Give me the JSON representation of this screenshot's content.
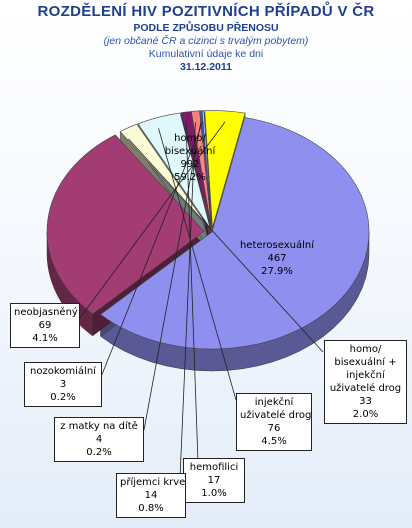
{
  "titles": {
    "main": "ROZDĚLENÍ HIV POZITIVNÍCH PŘÍPADŮ V ČR",
    "sub1": "PODLE ZPŮSOBU PŘENOSU",
    "sub2": "(jen občané ČR a cizinci s trvalým pobytem)",
    "sub3": "Kumulativní údaje ke dni",
    "date": "31.12.2011"
  },
  "chart_data": {
    "type": "pie",
    "style": "3d-exploded",
    "slices": [
      {
        "label": "homo/ bisexuální",
        "value": 992,
        "percent": "59.2%",
        "color": "#8f8ff0"
      },
      {
        "label": "heterosexuální",
        "value": 467,
        "percent": "27.9%",
        "color": "#a23c72"
      },
      {
        "label": "homo/ bisexuální + injekční uživatelé drog",
        "value": 33,
        "percent": "2.0%",
        "color": "#fbfbd5"
      },
      {
        "label": "injekční uživatelé drog",
        "value": 76,
        "percent": "4.5%",
        "color": "#dff8fb"
      },
      {
        "label": "hemofilici",
        "value": 17,
        "percent": "1.0%",
        "color": "#7f1a6a"
      },
      {
        "label": "příjemci krve",
        "value": 14,
        "percent": "0.8%",
        "color": "#ff8080"
      },
      {
        "label": "z matky na dítě",
        "value": 4,
        "percent": "0.2%",
        "color": "#2a5bd8"
      },
      {
        "label": "nozokomiální",
        "value": 3,
        "percent": "0.2%",
        "color": "#c9c9f8"
      },
      {
        "label": "neobjasněný",
        "value": 69,
        "percent": "4.1%",
        "color": "#ffff00"
      }
    ]
  },
  "labels": {
    "homo": {
      "l1": "homo/",
      "l2": "bisexuální",
      "v": "992",
      "p": "59.2%"
    },
    "hetero": {
      "l1": "heterosexuální",
      "v": "467",
      "p": "27.9%"
    },
    "homo_idu": {
      "l1": "homo/",
      "l2": "bisexuální +",
      "l3": "injekční",
      "l4": "uživatelé drog",
      "v": "33",
      "p": "2.0%"
    },
    "idu": {
      "l1": "injekční",
      "l2": "uživatelé drog",
      "v": "76",
      "p": "4.5%"
    },
    "hemo": {
      "l1": "hemofilici",
      "v": "17",
      "p": "1.0%"
    },
    "krev": {
      "l1": "příjemci krve",
      "v": "14",
      "p": "0.8%"
    },
    "matka": {
      "l1": "z matky na dítě",
      "v": "4",
      "p": "0.2%"
    },
    "nozo": {
      "l1": "nozokomiální",
      "v": "3",
      "p": "0.2%"
    },
    "neob": {
      "l1": "neobjasněný",
      "v": "69",
      "p": "4.1%"
    }
  }
}
